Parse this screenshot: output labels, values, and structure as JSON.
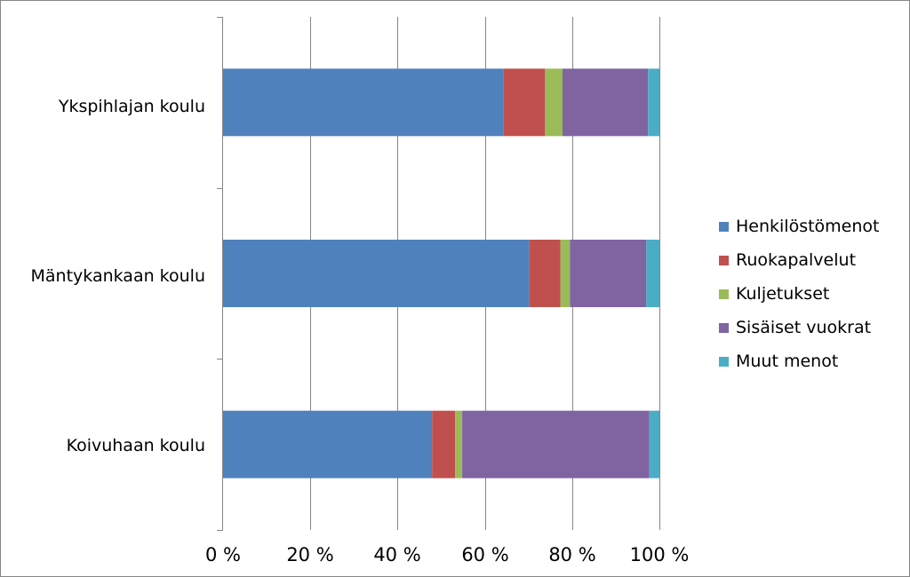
{
  "chart_data": {
    "type": "bar",
    "orientation": "horizontal",
    "stacked": "percent",
    "categories": [
      "Ykspihlajan koulu",
      "Mäntykankaan koulu",
      "Koivuhaan koulu"
    ],
    "series": [
      {
        "name": "Henkilöstömenot",
        "color": "#4F81BD",
        "values": [
          64.3,
          70.2,
          47.9
        ]
      },
      {
        "name": "Ruokapalvelut",
        "color": "#C0504D",
        "values": [
          9.5,
          7.1,
          5.3
        ]
      },
      {
        "name": "Kuljetukset",
        "color": "#9BBB59",
        "values": [
          4.0,
          2.2,
          1.6
        ]
      },
      {
        "name": "Sisäiset vuokrat",
        "color": "#8064A2",
        "values": [
          19.6,
          17.5,
          42.9
        ]
      },
      {
        "name": "Muut menot",
        "color": "#4BACC6",
        "values": [
          2.6,
          3.0,
          2.3
        ]
      }
    ],
    "xlim": [
      0,
      100
    ],
    "x_ticks": [
      "0 %",
      "20 %",
      "40 %",
      "60 %",
      "80 %",
      "100 %"
    ],
    "grid": "vertical",
    "legend_position": "right",
    "title": "",
    "xlabel": "",
    "ylabel": ""
  }
}
